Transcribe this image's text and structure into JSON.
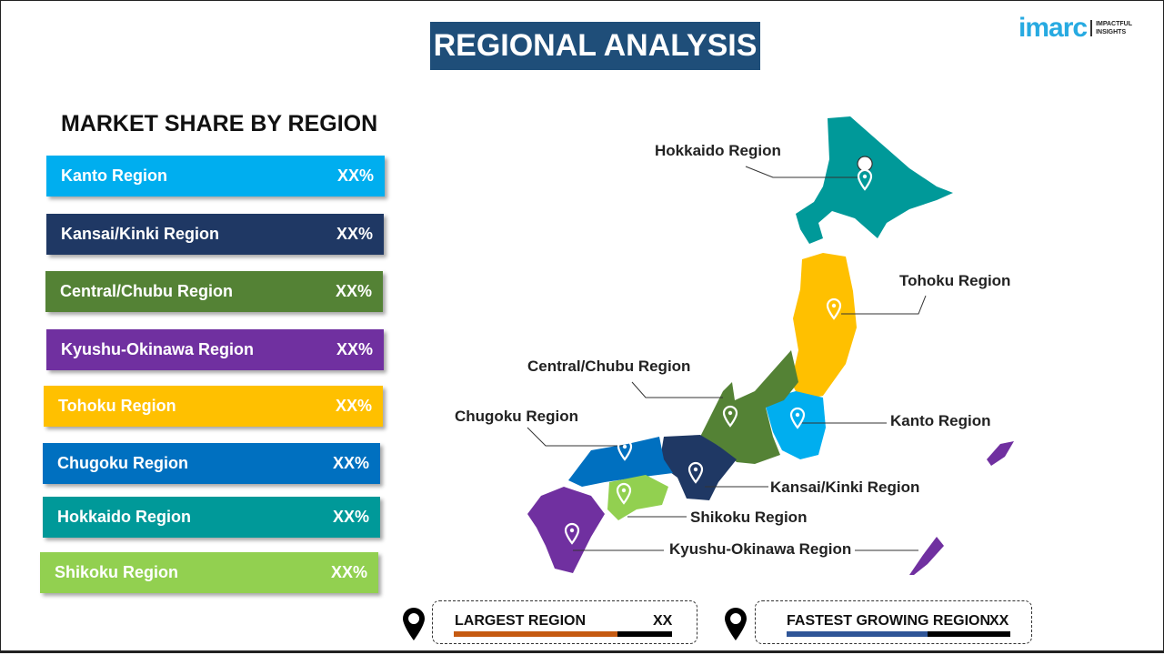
{
  "title": "REGIONAL ANALYSIS",
  "logo": {
    "brand": "imarc",
    "tagline_1": "IMPACTFUL",
    "tagline_2": "INSIGHTS"
  },
  "subtitle": "MARKET SHARE BY REGION",
  "bars": [
    {
      "label": "Kanto  Region",
      "value": "XX%",
      "color": "#00aeef"
    },
    {
      "label": "Kansai/Kinki  Region",
      "value": "XX%",
      "color": "#1f3864"
    },
    {
      "label": "Central/Chubu  Region",
      "value": "XX%",
      "color": "#548235"
    },
    {
      "label": "Kyushu-Okinawa  Region",
      "value": "XX%",
      "color": "#7030a0"
    },
    {
      "label": "Tohoku  Region",
      "value": "XX%",
      "color": "#ffc000"
    },
    {
      "label": "Chugoku  Region",
      "value": "XX%",
      "color": "#0070c0"
    },
    {
      "label": "Hokkaido  Region",
      "value": "XX%",
      "color": "#009999"
    },
    {
      "label": "Shikoku  Region",
      "value": "XX%",
      "color": "#92d050"
    }
  ],
  "map_labels": {
    "hokkaido": "Hokkaido Region",
    "tohoku": "Tohoku Region",
    "central": "Central/Chubu Region",
    "chugoku": "Chugoku Region",
    "kanto": "Kanto Region",
    "kansai": "Kansai/Kinki Region",
    "shikoku": "Shikoku Region",
    "kyushu": "Kyushu-Okinawa Region"
  },
  "largest": {
    "label": "LARGEST REGION",
    "value": "XX",
    "bar_color": "#c55a11",
    "fill_percent": 75
  },
  "fastest": {
    "label": "FASTEST GROWING REGION",
    "value": "XX",
    "bar_color": "#2f5597",
    "fill_percent": 63
  }
}
